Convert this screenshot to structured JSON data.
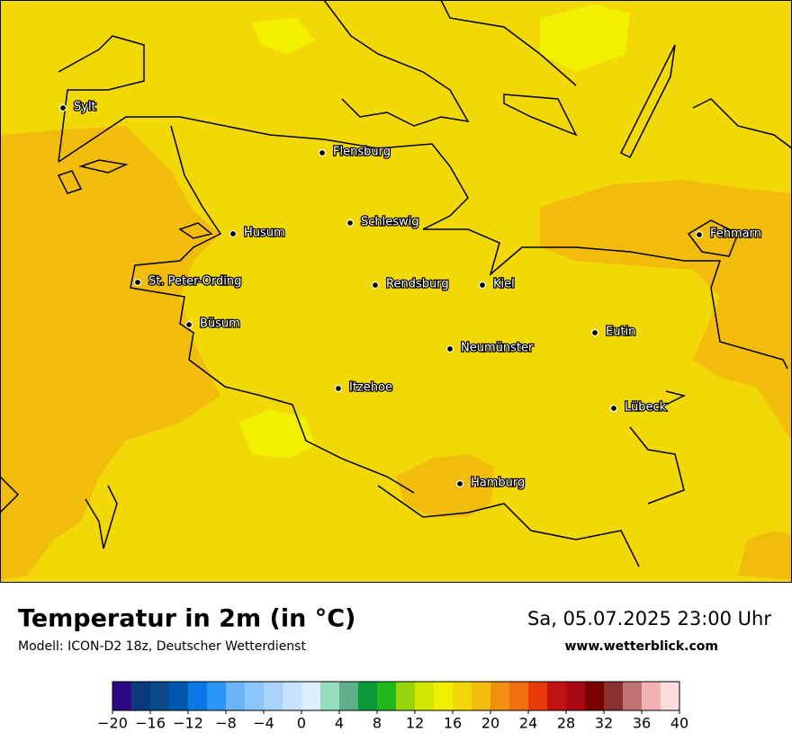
{
  "header": {
    "title": "Temperatur in 2m (in °C)",
    "subtitle": "Modell: ICON-D2 18z, Deutscher Wetterdienst",
    "datetime": "Sa, 05.07.2025 23:00 Uhr",
    "website": "www.wetterblick.com"
  },
  "cities": [
    "Sylt",
    "Flensburg",
    "Schleswig",
    "Husum",
    "St. Peter-Ording",
    "Rendsburg",
    "Kiel",
    "Büsum",
    "Neumünster",
    "Eutin",
    "Itzehoe",
    "Lübeck",
    "Fehmarn",
    "Hamburg"
  ],
  "legend": {
    "lim": [
      -20,
      40
    ],
    "colors": [
      "#2e0a82",
      "#0a3a7a",
      "#0b4a8a",
      "#0058b0",
      "#0a78e8",
      "#2b96f5",
      "#6ab4f8",
      "#8cc6fa",
      "#a8d4fc",
      "#c5e3fc",
      "#dbeefd",
      "#96dcc0",
      "#5fb08a",
      "#0a9a3a",
      "#20b81a",
      "#96d40a",
      "#d2e600",
      "#f0f000",
      "#f2d806",
      "#f2bc0c",
      "#f0900e",
      "#f07010",
      "#e83a0a",
      "#c01414",
      "#a80a14",
      "#7a0000",
      "#8a3232",
      "#c07272",
      "#f0b2b2",
      "#fcdcdc"
    ],
    "ticks": [
      {
        "value": -20,
        "label": "−20"
      },
      {
        "value": -16,
        "label": "−16"
      },
      {
        "value": -12,
        "label": "−12"
      },
      {
        "value": -8,
        "label": "−8"
      },
      {
        "value": -4,
        "label": "−4"
      },
      0,
      4,
      8,
      12,
      16,
      20,
      24,
      28,
      32,
      36,
      40
    ]
  }
}
